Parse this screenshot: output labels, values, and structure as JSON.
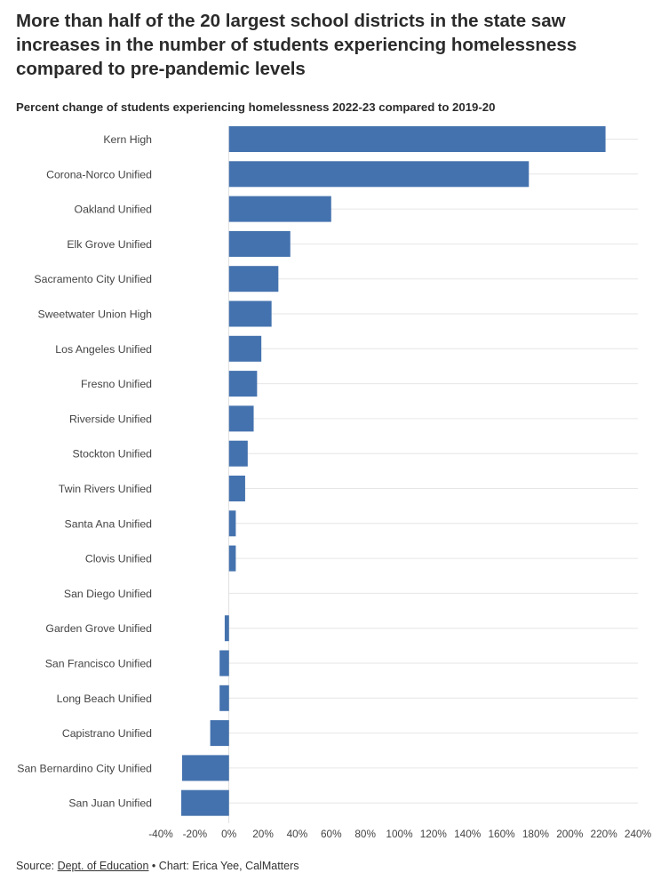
{
  "headline": "More than half of the 20 largest school districts in the state saw increases in the number of students experiencing homelessness compared to pre-pandemic levels",
  "subtitle": "Percent change of students experiencing homelessness 2022-23 compared to 2019-20",
  "footer": {
    "source_label": "Source:",
    "source_link": "Dept. of Education",
    "separator": "•",
    "credit": "Chart: Erica Yee, CalMatters"
  },
  "colors": {
    "bar": "#4472ae",
    "grid": "#e6e6e6",
    "zero_line": "#cccccc"
  },
  "chart_data": {
    "type": "bar",
    "orientation": "horizontal",
    "categories": [
      "Kern High",
      "Corona-Norco Unified",
      "Oakland Unified",
      "Elk Grove Unified",
      "Sacramento City Unified",
      "Sweetwater Union High",
      "Los Angeles Unified",
      "Fresno Unified",
      "Riverside Unified",
      "Stockton Unified",
      "Twin Rivers Unified",
      "Santa Ana Unified",
      "Clovis Unified",
      "San Diego Unified",
      "Garden Grove Unified",
      "San Francisco Unified",
      "Long Beach Unified",
      "Capistrano Unified",
      "San Bernardino City Unified",
      "San Juan Unified"
    ],
    "values": [
      221,
      176,
      60,
      36,
      29,
      25,
      19,
      16.5,
      14.5,
      11,
      9.5,
      4,
      4,
      0,
      -2.5,
      -5.5,
      -5.5,
      -11,
      -27.5,
      -28
    ],
    "xlim": [
      -40,
      240
    ],
    "x_ticks": [
      -40,
      -20,
      0,
      20,
      40,
      60,
      80,
      100,
      120,
      140,
      160,
      180,
      200,
      220,
      240
    ],
    "tick_suffix": "%",
    "grid": true
  }
}
